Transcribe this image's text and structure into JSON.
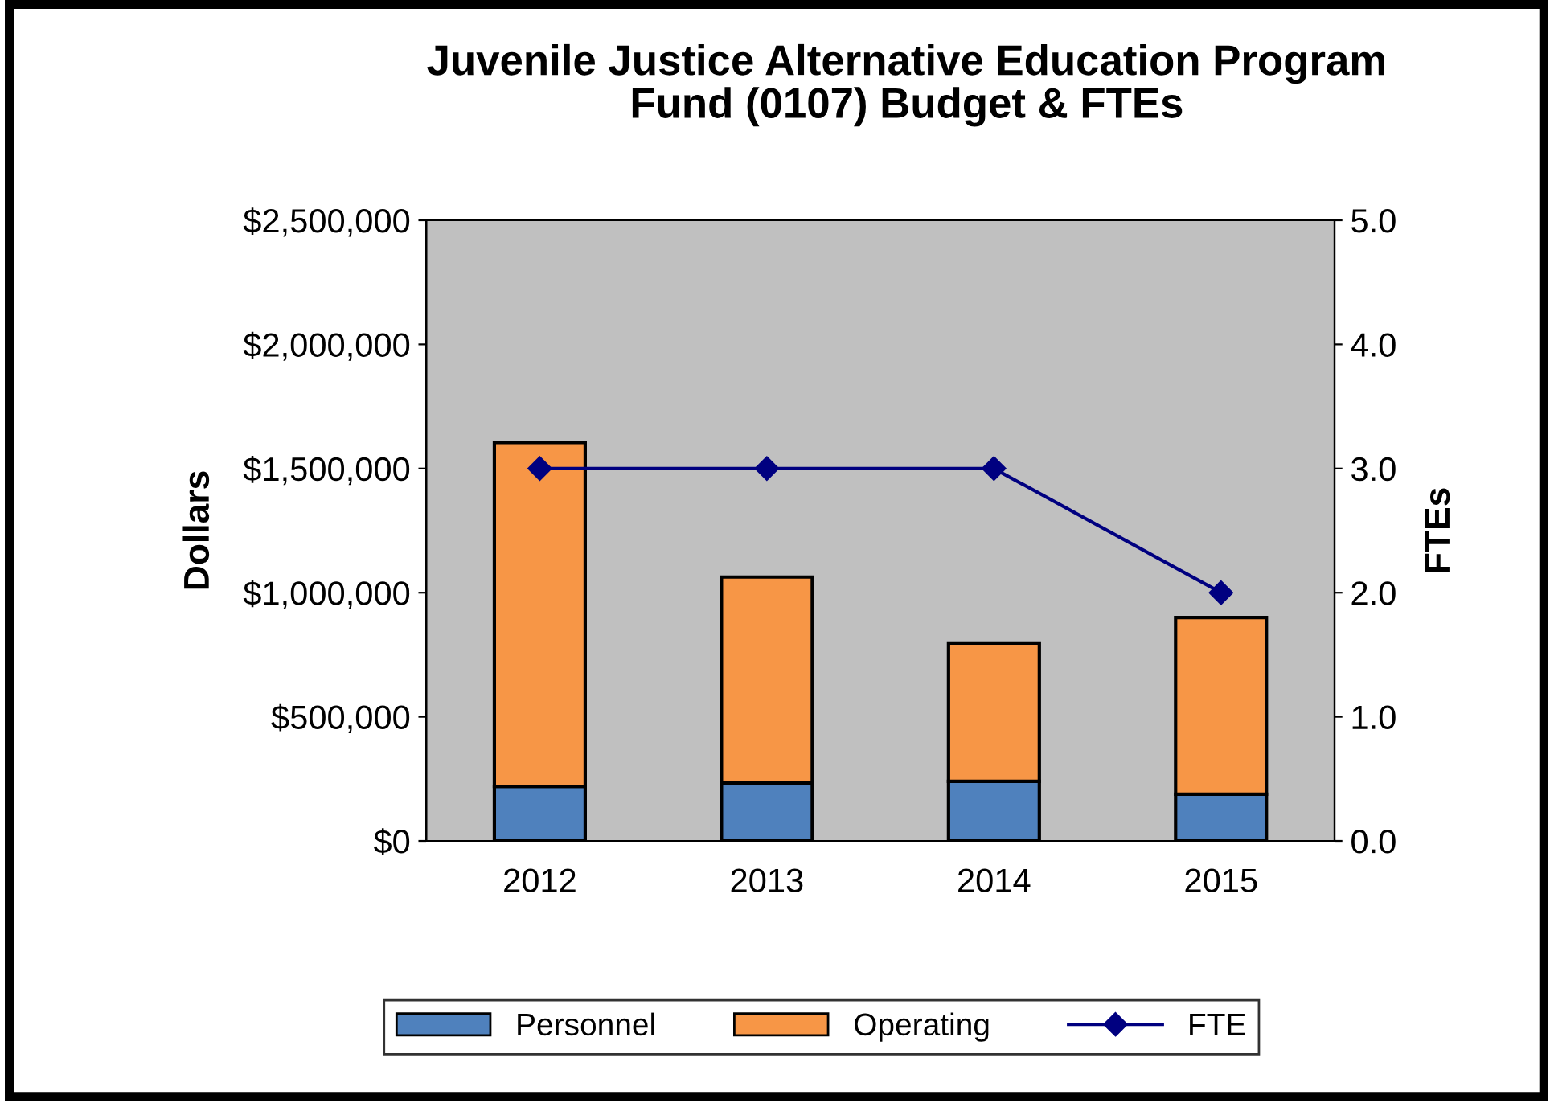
{
  "chart_data": {
    "type": "bar",
    "title": "Juvenile Justice Alternative Education Program\nFund (0107) Budget & FTEs",
    "ylabel": "Dollars",
    "y2label": "FTEs",
    "categories": [
      "2012",
      "2013",
      "2014",
      "2015"
    ],
    "stacked": true,
    "series": [
      {
        "name": "Personnel",
        "color": "#4f81bd",
        "values": [
          220000,
          233000,
          240000,
          188000
        ]
      },
      {
        "name": "Operating",
        "color": "#f79646",
        "values": [
          1385000,
          830000,
          557000,
          712000
        ]
      },
      {
        "name": "FTE",
        "type": "line",
        "axis": "y2",
        "color": "#000080",
        "marker": "diamond",
        "values": [
          3.0,
          3.0,
          3.0,
          2.0
        ]
      }
    ],
    "ylim": [
      0,
      2500000
    ],
    "yticks": [
      {
        "value": 0,
        "label": "$0"
      },
      {
        "value": 500000,
        "label": "$500,000"
      },
      {
        "value": 1000000,
        "label": "$1,000,000"
      },
      {
        "value": 1500000,
        "label": "$1,500,000"
      },
      {
        "value": 2000000,
        "label": "$2,000,000"
      },
      {
        "value": 2500000,
        "label": "$2,500,000"
      }
    ],
    "y2lim": [
      0,
      5
    ],
    "y2ticks": [
      {
        "value": 0,
        "label": "0.0"
      },
      {
        "value": 1,
        "label": "1.0"
      },
      {
        "value": 2,
        "label": "2.0"
      },
      {
        "value": 3,
        "label": "3.0"
      },
      {
        "value": 4,
        "label": "4.0"
      },
      {
        "value": 5,
        "label": "5.0"
      }
    ],
    "grid": false,
    "legend": "bottom"
  }
}
